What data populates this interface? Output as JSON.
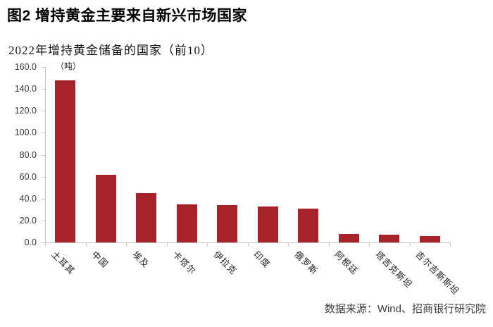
{
  "header": {
    "title": "图2 增持黄金主要来自新兴市场国家"
  },
  "chart_data": {
    "type": "bar",
    "title": "2022年增持黄金储备的国家（前10）",
    "unit_label": "（吨）",
    "categories": [
      "土耳其",
      "中国",
      "埃及",
      "卡塔尔",
      "伊拉克",
      "印度",
      "俄罗斯",
      "阿根廷",
      "塔吉克斯坦",
      "吉尔吉斯斯坦"
    ],
    "values": [
      148,
      62,
      45,
      35,
      34,
      33,
      31,
      8,
      7,
      6
    ],
    "xlabel": "",
    "ylabel": "",
    "ylim": [
      0,
      160
    ],
    "ytick_step": 20,
    "ytick_labels": [
      "0.0",
      "20.0",
      "40.0",
      "60.0",
      "80.0",
      "100.0",
      "120.0",
      "140.0",
      "160.0"
    ],
    "grid": false,
    "legend_position": "none",
    "bar_color": "#a8222c",
    "axis_color": "#bfbfbf"
  },
  "footer": {
    "source": "数据来源：Wind、招商银行研究院"
  }
}
